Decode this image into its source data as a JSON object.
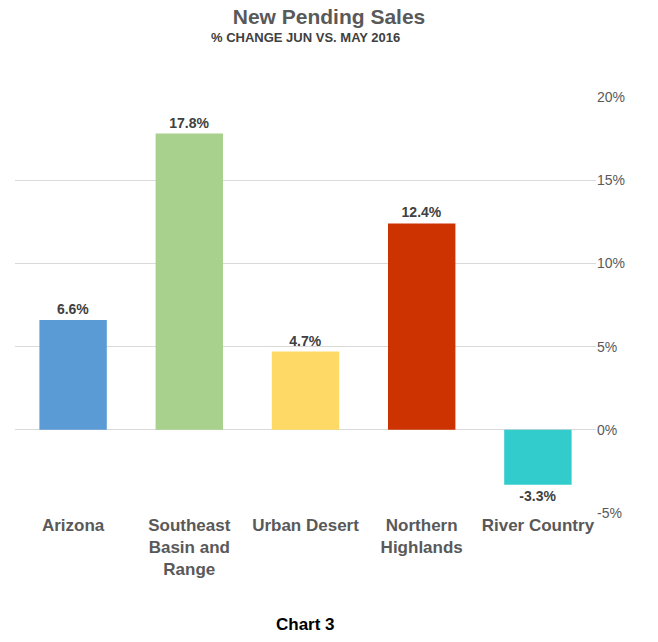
{
  "chart_data": {
    "type": "bar",
    "title": "New Pending Sales",
    "subtitle": "% CHANGE JUN VS. MAY 2016",
    "categories": [
      "Arizona",
      "Southeast Basin and Range",
      "Urban Desert",
      "Northern Highlands",
      "River Country"
    ],
    "values": [
      6.6,
      17.8,
      4.7,
      12.4,
      -3.3
    ],
    "value_labels": [
      "6.6%",
      "17.8%",
      "4.7%",
      "12.4%",
      "-3.3%"
    ],
    "colors": [
      "#5b9bd5",
      "#a9d18e",
      "#ffd966",
      "#cc3300",
      "#33cccc"
    ],
    "data_labels": true,
    "ylim": [
      -5,
      20
    ],
    "yticks": [
      {
        "value": -5,
        "label": "-5%"
      },
      {
        "value": 0,
        "label": "0%"
      },
      {
        "value": 5,
        "label": "5%"
      },
      {
        "value": 10,
        "label": "10%"
      },
      {
        "value": 15,
        "label": "15%"
      },
      {
        "value": 20,
        "label": "20%"
      }
    ],
    "grid": true,
    "annotations": [
      "Chart 3"
    ]
  }
}
